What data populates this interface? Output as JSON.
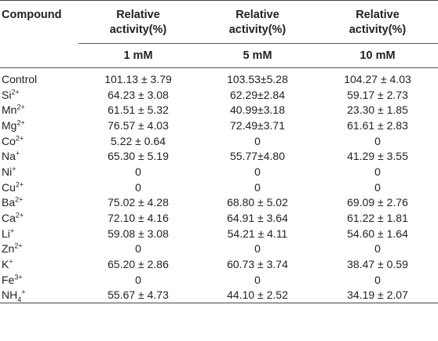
{
  "header": {
    "compound": "Compound",
    "relative_line1": "Relative",
    "relative_line2": "activity(%)",
    "conc": [
      "1 mM",
      "5 mM",
      "10 mM"
    ]
  },
  "rows": [
    {
      "name": "Control",
      "sup": "",
      "sub": "",
      "sup2": "",
      "v1": "101.13 ± 3.79",
      "v2": "103.53±5.28",
      "v3": "104.27 ± 4.03"
    },
    {
      "name": "Si",
      "sup": "2+",
      "sub": "",
      "sup2": "",
      "v1": "64.23 ± 3.08",
      "v2": "62.29±2.84",
      "v3": "59.17 ± 2.73"
    },
    {
      "name": "Mn",
      "sup": "2+",
      "sub": "",
      "sup2": "",
      "v1": "61.51 ± 5.32",
      "v2": "40.99±3.18",
      "v3": "23.30 ± 1.85"
    },
    {
      "name": "Mg",
      "sup": "2+",
      "sub": "",
      "sup2": "",
      "v1": "76.57 ± 4.03",
      "v2": "72.49±3.71",
      "v3": "61.61 ± 2.83"
    },
    {
      "name": "Co",
      "sup": "2+",
      "sub": "",
      "sup2": "",
      "v1": "5.22 ± 0.64",
      "v2": "0",
      "v3": "0"
    },
    {
      "name": "Na",
      "sup": "+",
      "sub": "",
      "sup2": "",
      "v1": "65.30 ± 5.19",
      "v2": "55.77±4.80",
      "v3": "41.29 ± 3.55"
    },
    {
      "name": "Ni",
      "sup": "+",
      "sub": "",
      "sup2": "",
      "v1": "0",
      "v2": "0",
      "v3": "0"
    },
    {
      "name": "Cu",
      "sup": "2+",
      "sub": "",
      "sup2": "",
      "v1": "0",
      "v2": "0",
      "v3": "0"
    },
    {
      "name": "Ba",
      "sup": "2+",
      "sub": "",
      "sup2": "",
      "v1": "75.02 ± 4.28",
      "v2": "68.80 ± 5.02",
      "v3": "69.09 ± 2.76"
    },
    {
      "name": "Ca",
      "sup": "2+",
      "sub": "",
      "sup2": "",
      "v1": "72.10 ± 4.16",
      "v2": "64.91 ± 3.64",
      "v3": "61.22 ± 1.81"
    },
    {
      "name": "Li",
      "sup": "+",
      "sub": "",
      "sup2": "",
      "v1": "59.08 ± 3.08",
      "v2": "54.21 ± 4.11",
      "v3": "54.60 ± 1.64"
    },
    {
      "name": "Zn",
      "sup": "2+",
      "sub": "",
      "sup2": "",
      "v1": "0",
      "v2": "0",
      "v3": "0"
    },
    {
      "name": "K",
      "sup": "+",
      "sub": "",
      "sup2": "",
      "v1": "65.20 ± 2.86",
      "v2": "60.73 ± 3.74",
      "v3": "38.47 ± 0.59"
    },
    {
      "name": "Fe",
      "sup": "3+",
      "sub": "",
      "sup2": "",
      "v1": "0",
      "v2": "0",
      "v3": "0"
    },
    {
      "name": "NH",
      "sup": "",
      "sub": "4",
      "sup2": "+",
      "v1": "55.67 ± 4.73",
      "v2": "44.10 ± 2.52",
      "v3": "34.19 ± 2.07"
    }
  ]
}
